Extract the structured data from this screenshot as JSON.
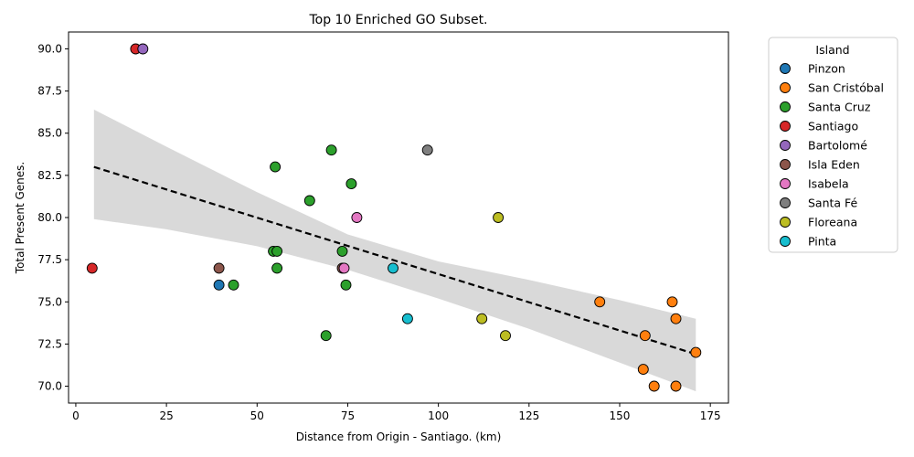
{
  "chart_data": {
    "type": "scatter",
    "title": "Top 10 Enriched GO Subset.",
    "xlabel": "Distance from Origin - Santiago. (km)",
    "ylabel": "Total Present Genes.",
    "xlim": [
      -2,
      180
    ],
    "ylim": [
      69,
      91
    ],
    "xticks": [
      0,
      25,
      50,
      75,
      100,
      125,
      150,
      175
    ],
    "yticks": [
      70.0,
      72.5,
      75.0,
      77.5,
      80.0,
      82.5,
      85.0,
      87.5,
      90.0
    ],
    "xtick_labels": [
      "0",
      "25",
      "50",
      "75",
      "100",
      "125",
      "150",
      "175"
    ],
    "ytick_labels": [
      "70.0",
      "72.5",
      "75.0",
      "77.5",
      "80.0",
      "82.5",
      "85.0",
      "87.5",
      "90.0"
    ],
    "grid": false,
    "legend_title": "Island",
    "legend_position": "outside-right",
    "regression": {
      "style": "dashed",
      "color": "#000000",
      "x": [
        5,
        171
      ],
      "y": [
        83.0,
        71.9
      ],
      "ci_band": {
        "color": "#d9d9d9",
        "x": [
          5,
          25,
          50,
          75,
          100,
          125,
          150,
          171
        ],
        "upper": [
          86.4,
          84.2,
          81.5,
          79.0,
          77.4,
          76.3,
          75.1,
          74.0
        ],
        "lower": [
          79.9,
          79.3,
          78.3,
          76.9,
          75.2,
          73.4,
          71.4,
          69.7
        ]
      }
    },
    "series": [
      {
        "name": "Pinzon",
        "color": "#1f77b4",
        "points": [
          [
            39.5,
            76
          ]
        ]
      },
      {
        "name": "San Cristóbal",
        "color": "#ff7f0e",
        "points": [
          [
            144.5,
            75
          ],
          [
            164.5,
            75
          ],
          [
            165.5,
            74
          ],
          [
            157,
            73
          ],
          [
            171,
            72
          ],
          [
            156.5,
            71
          ],
          [
            159.5,
            70
          ],
          [
            165.5,
            70
          ]
        ]
      },
      {
        "name": "Santa Cruz",
        "color": "#2ca02c",
        "points": [
          [
            70.5,
            84
          ],
          [
            55,
            83
          ],
          [
            76,
            82
          ],
          [
            64.5,
            81
          ],
          [
            54.5,
            78
          ],
          [
            55.5,
            78
          ],
          [
            73.5,
            78
          ],
          [
            55.5,
            77
          ],
          [
            43.5,
            76
          ],
          [
            74.5,
            76
          ],
          [
            69,
            73
          ]
        ]
      },
      {
        "name": "Santiago",
        "color": "#d62728",
        "points": [
          [
            16.5,
            90
          ],
          [
            4.5,
            77
          ]
        ]
      },
      {
        "name": "Bartolomé",
        "color": "#9467bd",
        "points": [
          [
            18.5,
            90
          ]
        ]
      },
      {
        "name": "Isla Eden",
        "color": "#8c564b",
        "points": [
          [
            39.5,
            77
          ],
          [
            73.5,
            77
          ]
        ]
      },
      {
        "name": "Isabela",
        "color": "#e377c2",
        "points": [
          [
            77.5,
            80
          ],
          [
            74,
            77
          ]
        ]
      },
      {
        "name": "Santa Fé",
        "color": "#7f7f7f",
        "points": [
          [
            97,
            84
          ]
        ]
      },
      {
        "name": "Floreana",
        "color": "#bcbd22",
        "points": [
          [
            116.5,
            80
          ],
          [
            112,
            74
          ],
          [
            118.5,
            73
          ]
        ]
      },
      {
        "name": "Pinta",
        "color": "#17becf",
        "points": [
          [
            87.5,
            77
          ],
          [
            91.5,
            74
          ]
        ]
      }
    ]
  }
}
